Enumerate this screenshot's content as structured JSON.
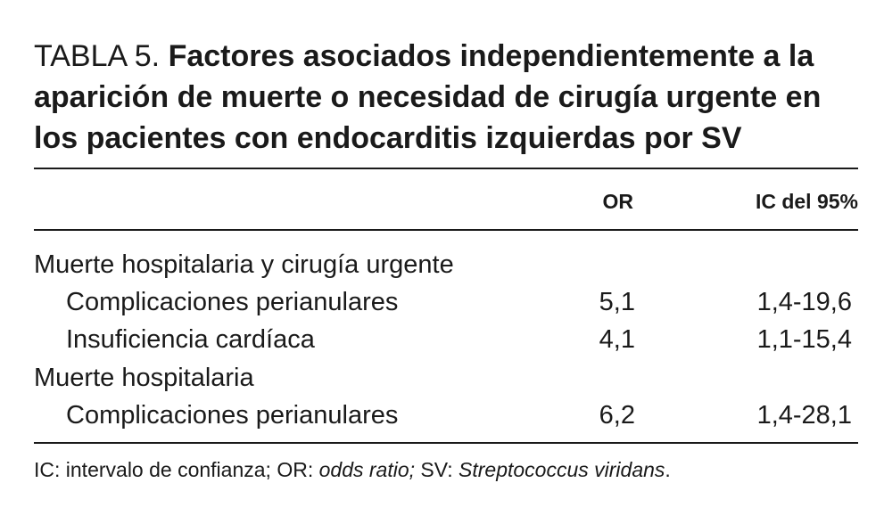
{
  "title": {
    "prefix": "TABLA 5. ",
    "text": "Factores asociados independientemente a la aparición de muerte o necesidad de cirugía urgente en los pacientes con endocarditis izquierdas por SV"
  },
  "table": {
    "headers": {
      "label": "",
      "or": "OR",
      "ic": "IC del 95%"
    },
    "rows": [
      {
        "type": "group",
        "label": "Muerte hospitalaria y cirugía urgente",
        "or": "",
        "ic": ""
      },
      {
        "type": "item",
        "label": "Complicaciones perianulares",
        "or": "5,1",
        "ic": "1,4-19,6"
      },
      {
        "type": "item",
        "label": "Insuficiencia cardíaca",
        "or": "4,1",
        "ic": "1,1-15,4"
      },
      {
        "type": "group",
        "label": "Muerte hospitalaria",
        "or": "",
        "ic": ""
      },
      {
        "type": "item",
        "label": "Complicaciones perianulares",
        "or": "6,2",
        "ic": "1,4-28,1"
      }
    ]
  },
  "footnote": {
    "part1": "IC: intervalo de confianza; OR: ",
    "part2": "odds ratio;",
    "part3": " SV: ",
    "part4": "Streptococcus viridans",
    "part5": "."
  }
}
